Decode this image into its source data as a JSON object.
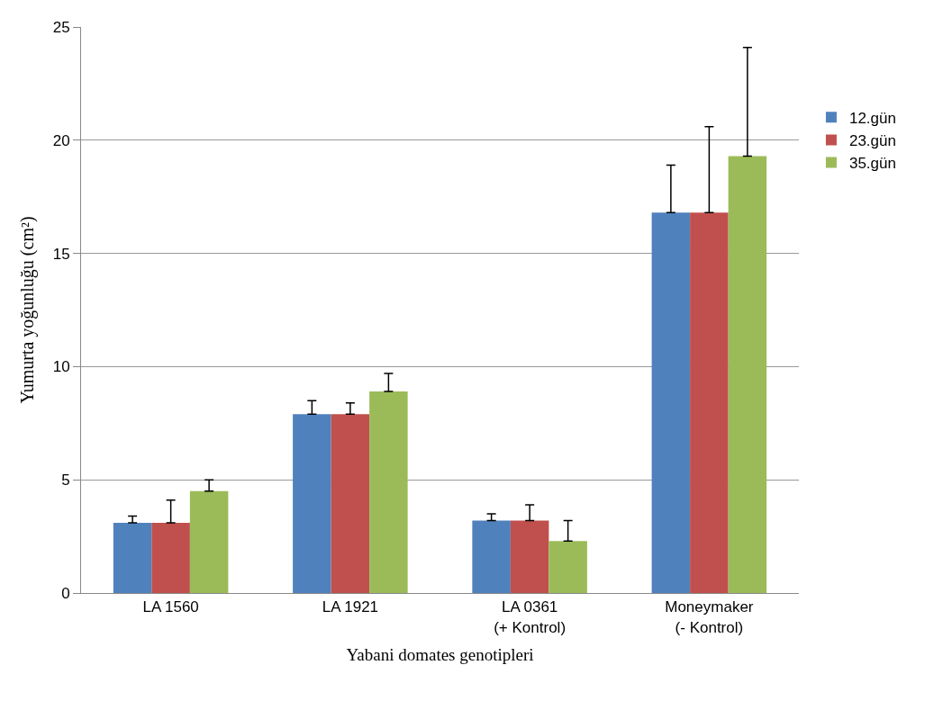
{
  "chart_data": {
    "type": "bar",
    "xlabel": "Yabani domates genotipleri",
    "ylabel": "Yumurta yoğunluğu (cm²)",
    "categories": [
      "LA 1560",
      "LA 1921",
      "LA 0361\n(+ Kontrol)",
      "Moneymaker\n(- Kontrol)"
    ],
    "series": [
      {
        "name": "12.gün",
        "color": "#4f81bd",
        "values": [
          3.1,
          7.9,
          3.2,
          16.8
        ],
        "errors": [
          [
            3.1,
            3.4
          ],
          [
            7.9,
            8.5
          ],
          [
            3.2,
            3.5
          ],
          [
            16.8,
            18.9
          ]
        ]
      },
      {
        "name": "23.gün",
        "color": "#c0504d",
        "values": [
          3.1,
          7.9,
          3.2,
          16.8
        ],
        "errors": [
          [
            3.1,
            4.1
          ],
          [
            7.9,
            8.4
          ],
          [
            3.2,
            3.9
          ],
          [
            16.8,
            20.6
          ]
        ]
      },
      {
        "name": "35.gün",
        "color": "#9bbb59",
        "values": [
          4.5,
          8.9,
          2.3,
          19.3
        ],
        "errors": [
          [
            4.5,
            5.0
          ],
          [
            8.9,
            9.7
          ],
          [
            2.3,
            3.2
          ],
          [
            19.3,
            24.1
          ]
        ]
      }
    ],
    "ylim": [
      0,
      25
    ],
    "yticks": [
      0,
      5,
      10,
      15,
      20,
      25
    ],
    "grid": "y",
    "legend": "right"
  }
}
